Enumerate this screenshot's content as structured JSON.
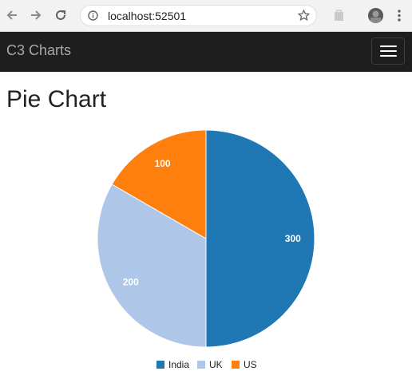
{
  "browser": {
    "url": "localhost:52501",
    "icons": [
      "back-icon",
      "forward-icon",
      "reload-icon",
      "site-info-icon",
      "bookmark-star-icon",
      "extension-icon",
      "profile-avatar",
      "more-vert-icon"
    ]
  },
  "navbar": {
    "brand": "C3 Charts",
    "toggler_icon": "hamburger-icon"
  },
  "page": {
    "title": "Pie Chart"
  },
  "chart_data": {
    "type": "pie",
    "series": [
      {
        "name": "India",
        "value": 300,
        "color": "#1f77b4"
      },
      {
        "name": "UK",
        "value": 200,
        "color": "#aec7e8"
      },
      {
        "name": "US",
        "value": 100,
        "color": "#ff7f0e"
      }
    ],
    "legend": "bottom"
  }
}
